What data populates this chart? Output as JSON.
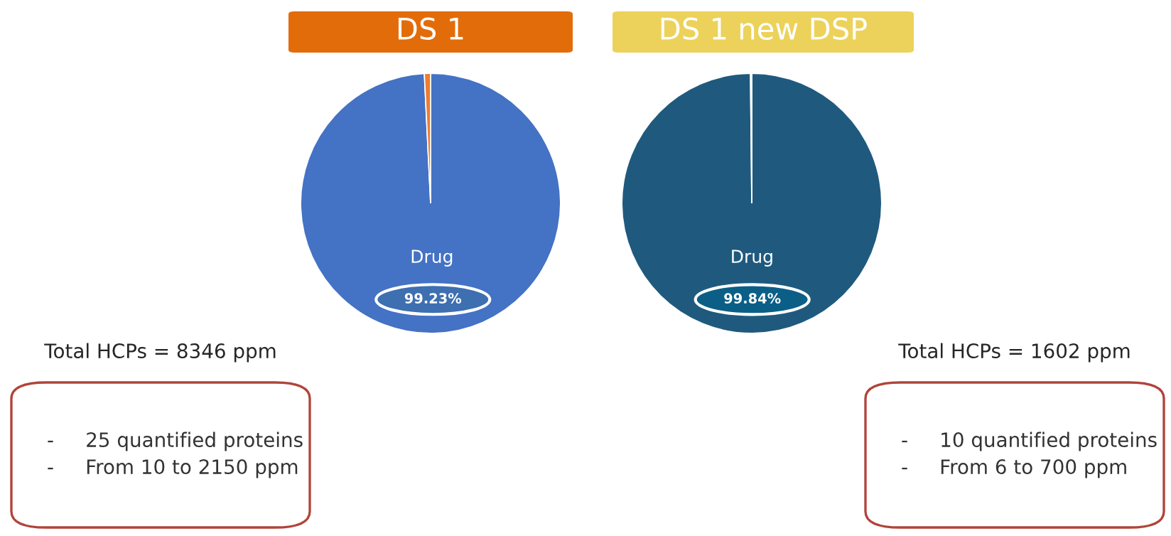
{
  "chart_data": [
    {
      "type": "pie",
      "title": "DS 1",
      "categories": [
        "Drug",
        null
      ],
      "values": [
        99.23,
        0.77
      ],
      "colors": [
        "#4472c4",
        "#ed7d31"
      ],
      "value_labels": [
        "99.23%",
        null
      ],
      "annotations": [
        "Total HCPs = 8346 ppm",
        "-     25 quantified proteins",
        "-     From 10 to 2150 ppm"
      ]
    },
    {
      "type": "pie",
      "title": "DS 1 new DSP",
      "categories": [
        "Drug",
        null
      ],
      "values": [
        99.84,
        0.16
      ],
      "colors": [
        "#1f5a7e",
        "#d9d9d9"
      ],
      "value_labels": [
        "99.84%",
        null
      ],
      "annotations": [
        "Total HCPs = 1602 ppm",
        "-     10 quantified proteins",
        "-     From 6 to 700 ppm"
      ]
    }
  ]
}
